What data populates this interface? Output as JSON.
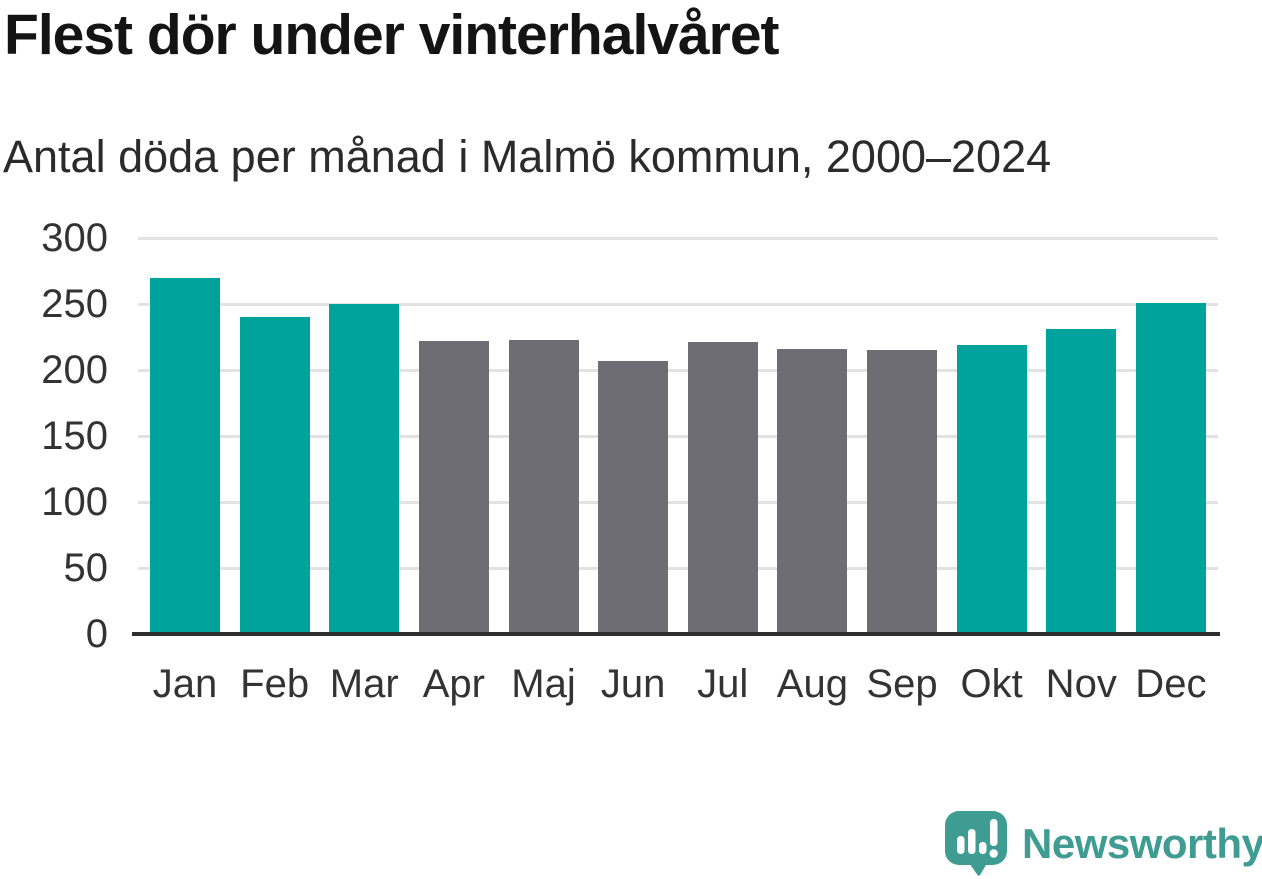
{
  "chart_data": {
    "type": "bar",
    "title": "Flest dör under vinterhalvåret",
    "subtitle": "Antal döda per månad i Malmö kommun, 2000–2024",
    "categories": [
      "Jan",
      "Feb",
      "Mar",
      "Apr",
      "Maj",
      "Jun",
      "Jul",
      "Aug",
      "Sep",
      "Okt",
      "Nov",
      "Dec"
    ],
    "values": [
      270,
      240,
      250,
      222,
      223,
      207,
      221,
      216,
      215,
      219,
      231,
      251
    ],
    "bar_color_roles": [
      "winter",
      "winter",
      "winter",
      "summer",
      "summer",
      "summer",
      "summer",
      "summer",
      "summer",
      "winter",
      "winter",
      "winter"
    ],
    "palette": {
      "winter": "#00a39b",
      "summer": "#6e6d73"
    },
    "xlabel": "",
    "ylabel": "",
    "ylim": [
      0,
      300
    ],
    "yticks": [
      0,
      50,
      100,
      150,
      200,
      250,
      300
    ],
    "grid": true,
    "legend": "none",
    "gridline_color": "#e2e2e2",
    "axis_line_color": "#2e2e2e",
    "tick_label_color": "#333333"
  },
  "branding": {
    "logo_text": "Newsworthy",
    "logo_color": "#3f9c92",
    "logo_icon": "bar-chart-speech-bubble-icon"
  }
}
